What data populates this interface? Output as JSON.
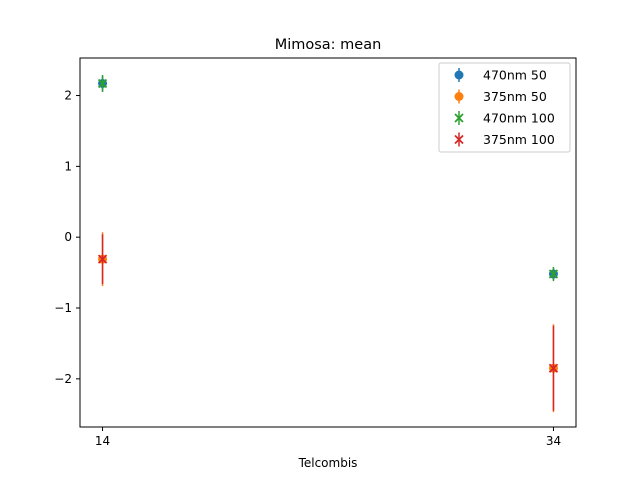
{
  "chart_data": {
    "type": "scatter",
    "title": "Mimosa: mean",
    "xlabel": "Telcombis",
    "ylabel": "",
    "x": [
      14,
      34
    ],
    "xticks": [
      14,
      34
    ],
    "yticks": [
      -2,
      -1,
      0,
      1,
      2
    ],
    "ytick_labels": [
      "−2",
      "−1",
      "0",
      "1",
      "2"
    ],
    "xlim": [
      13.0,
      35.0
    ],
    "ylim": [
      -2.68,
      2.53
    ],
    "grid": false,
    "legend_position": "upper right",
    "series": [
      {
        "name": "470nm 50",
        "marker": "circle",
        "color": "#1f77b4",
        "values": [
          2.17,
          -0.52
        ],
        "errors": [
          0.1,
          0.08
        ]
      },
      {
        "name": "375nm 50",
        "marker": "circle",
        "color": "#ff7f0e",
        "values": [
          -0.31,
          -1.85
        ],
        "errors": [
          0.38,
          0.62
        ]
      },
      {
        "name": "470nm 100",
        "marker": "x",
        "color": "#2ca02c",
        "values": [
          2.17,
          -0.52
        ],
        "errors": [
          0.12,
          0.1
        ]
      },
      {
        "name": "375nm 100",
        "marker": "x",
        "color": "#d62728",
        "values": [
          -0.31,
          -1.85
        ],
        "errors": [
          0.35,
          0.6
        ]
      }
    ]
  }
}
